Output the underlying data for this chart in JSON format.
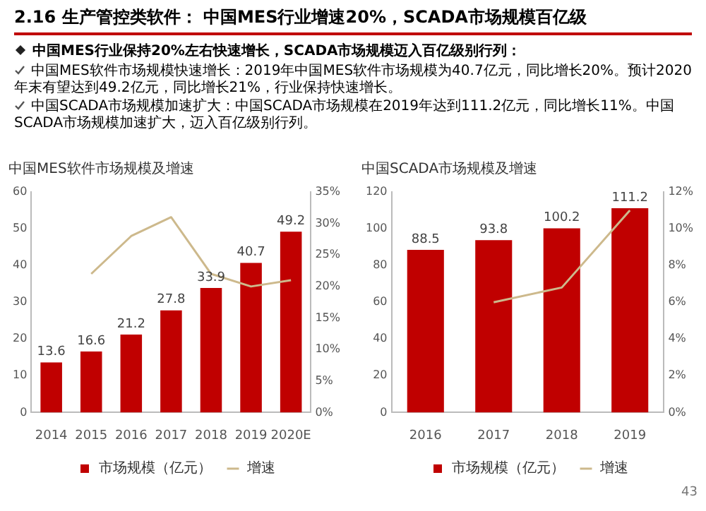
{
  "chart_data": [
    {
      "type": "other",
      "title": "2.16 生产管控类软件： 中国MES行业增速20%，SCADA市场规模百亿级",
      "subtitle": "中国MES行业保持20%左右快速增长，SCADA市场规模迈入百亿级别行列：",
      "annotations": [
        "中国MES软件市场规模快速增长：2019年中国MES软件市场规模为40.7亿元，同比增长20%。预计2020年末有望达到49.2亿元，同比增长21%，行业保持快速增长。",
        "中国SCADA市场规模加速扩大：中国SCADA市场规模在2019年达到111.2亿元，同比增长11%。中国SCADA市场规模加速扩大，迈入百亿级别行列。"
      ]
    },
    {
      "type": "bar",
      "title": "中国MES软件市场规模及增速",
      "categories": [
        "2014",
        "2015",
        "2016",
        "2017",
        "2018",
        "2019",
        "2020E"
      ],
      "series": [
        {
          "name": "市场规模（亿元）",
          "type": "bar",
          "color": "#c00000",
          "values": [
            13.6,
            16.6,
            21.2,
            27.8,
            33.9,
            40.7,
            49.2
          ],
          "value_labels": [
            "13.6",
            "16.6",
            "21.2",
            "27.8",
            "33.9",
            "40.7",
            "49.2"
          ]
        },
        {
          "name": "增速",
          "type": "line",
          "axis": "y2",
          "color": "#cdb98c",
          "marker": "none",
          "values": [
            null,
            22,
            28,
            31,
            22,
            20,
            21
          ]
        }
      ],
      "ylim": [
        0,
        60
      ],
      "yticks": [
        0,
        10,
        20,
        30,
        40,
        50,
        60
      ],
      "y2lim": [
        0,
        35
      ],
      "y2ticks": [
        {
          "value": 0,
          "label": "0%"
        },
        {
          "value": 5,
          "label": "5%"
        },
        {
          "value": 10,
          "label": "10%"
        },
        {
          "value": 15,
          "label": "15%"
        },
        {
          "value": 20,
          "label": "20%"
        },
        {
          "value": 25,
          "label": "25%"
        },
        {
          "value": 30,
          "label": "30%"
        },
        {
          "value": 35,
          "label": "35%"
        }
      ],
      "grid": false,
      "legend": "bottom"
    },
    {
      "type": "bar",
      "title": "中国SCADA市场规模及增速",
      "categories": [
        "2016",
        "2017",
        "2018",
        "2019"
      ],
      "series": [
        {
          "name": "市场规模（亿元）",
          "type": "bar",
          "color": "#c00000",
          "values": [
            88.5,
            93.8,
            100.2,
            111.2
          ],
          "value_labels": [
            "88.5",
            "93.8",
            "100.2",
            "111.2"
          ]
        },
        {
          "name": "增速",
          "type": "line",
          "axis": "y2",
          "color": "#cdb98c",
          "marker": "none",
          "values": [
            null,
            6.0,
            6.8,
            11.0
          ]
        }
      ],
      "ylim": [
        0,
        120
      ],
      "yticks": [
        0,
        20,
        40,
        60,
        80,
        100,
        120
      ],
      "y2lim": [
        0,
        12
      ],
      "y2ticks": [
        {
          "value": 0,
          "label": "0%"
        },
        {
          "value": 2,
          "label": "2%"
        },
        {
          "value": 4,
          "label": "4%"
        },
        {
          "value": 6,
          "label": "6%"
        },
        {
          "value": 8,
          "label": "8%"
        },
        {
          "value": 10,
          "label": "10%"
        },
        {
          "value": 12,
          "label": "12%"
        }
      ],
      "grid": false,
      "legend": "bottom",
      "annotations": [
        "43"
      ]
    }
  ]
}
